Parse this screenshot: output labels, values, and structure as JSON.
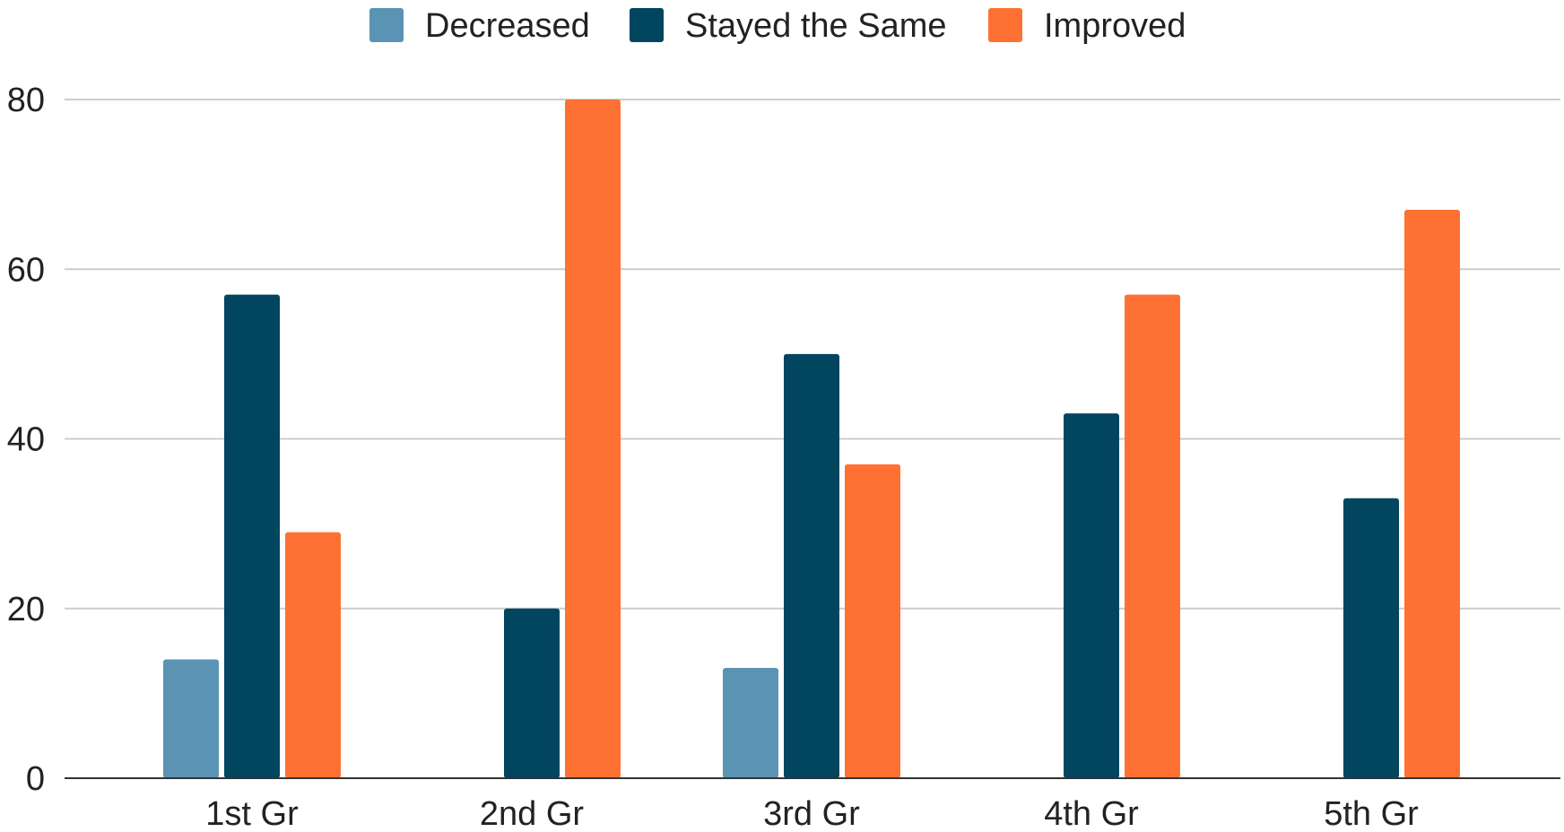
{
  "chart_data": {
    "type": "bar",
    "categories": [
      "1st Gr",
      "2nd Gr",
      "3rd Gr",
      "4th Gr",
      "5th Gr"
    ],
    "series": [
      {
        "name": "Decreased",
        "color": "#5b93b4",
        "values": [
          14,
          0,
          13,
          0,
          0
        ]
      },
      {
        "name": "Stayed the Same",
        "color": "#01455f",
        "values": [
          57,
          20,
          50,
          43,
          33
        ]
      },
      {
        "name": "Improved",
        "color": "#fe7133",
        "values": [
          29,
          80,
          37,
          57,
          67
        ]
      }
    ],
    "ylim": [
      0,
      80
    ],
    "yticks": [
      0,
      20,
      40,
      60,
      80
    ],
    "grid": true,
    "legend_position": "top-center"
  }
}
